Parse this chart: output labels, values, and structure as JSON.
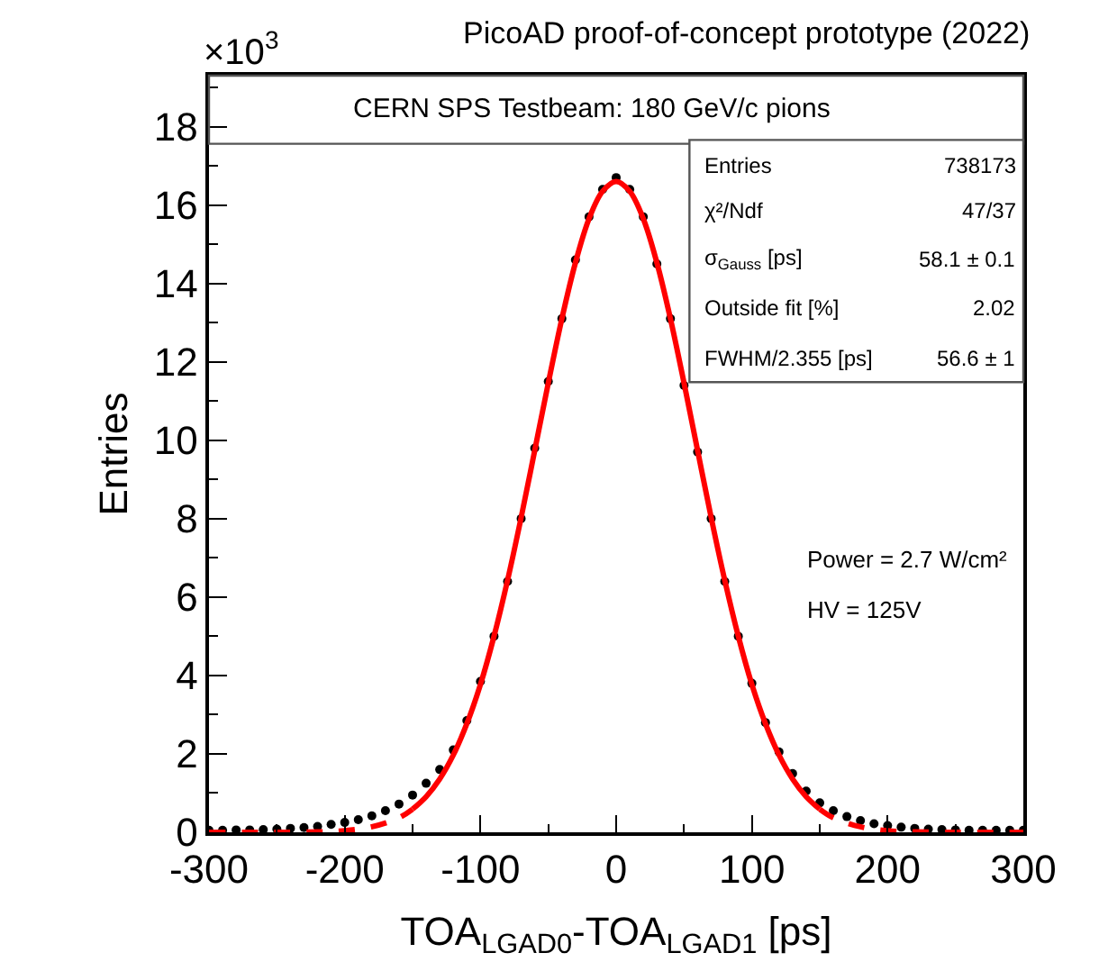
{
  "chart_data": {
    "type": "scatter",
    "title": "PicoAD proof-of-concept prototype (2022)",
    "xlabel": "TOA$_{LGAD0}$-TOA$_{LGAD1}$ [ps]",
    "ylabel": "Entries",
    "xlim": [
      -300,
      300
    ],
    "xticks": [
      -300,
      -200,
      -100,
      0,
      100,
      200,
      300
    ],
    "ylim": [
      0,
      19.3
    ],
    "yticks": [
      0,
      2,
      4,
      6,
      8,
      10,
      12,
      14,
      16,
      18
    ],
    "annotations": [
      "×10$^{3}$",
      "CERN SPS Testbeam: 180 GeV/c pions",
      "Entries",
      "738173",
      "χ²/Ndf",
      "47/37",
      "σ$_{Gauss}$ [ps]",
      "58.1 ± 0.1",
      "Outside fit [%]",
      "2.02",
      "FWHM/2.355 [ps]",
      "56.6 ± 1",
      "Power = 2.7 W/cm²",
      "HV = 125V"
    ],
    "series": [
      {
        "color": "#000000",
        "marker": "circle",
        "x": [
          -300,
          -290,
          -280,
          -270,
          -260,
          -250,
          -240,
          -230,
          -220,
          -210,
          -200,
          -190,
          -180,
          -170,
          -160,
          -150,
          -140,
          -130,
          -120,
          -110,
          -100,
          -90,
          -80,
          -70,
          -60,
          -50,
          -40,
          -30,
          -20,
          -10,
          0,
          10,
          20,
          30,
          40,
          50,
          60,
          70,
          80,
          90,
          100,
          110,
          120,
          130,
          140,
          150,
          160,
          170,
          180,
          190,
          200,
          210,
          220,
          230,
          240,
          250,
          260,
          270,
          280,
          290,
          300
        ],
        "values": [
          0.05,
          0.05,
          0.06,
          0.06,
          0.07,
          0.08,
          0.1,
          0.12,
          0.15,
          0.2,
          0.25,
          0.32,
          0.42,
          0.55,
          0.72,
          0.95,
          1.25,
          1.6,
          2.1,
          2.85,
          3.85,
          5.0,
          6.4,
          8.0,
          9.8,
          11.5,
          13.1,
          14.6,
          15.7,
          16.4,
          16.7,
          16.4,
          15.7,
          14.5,
          13.1,
          11.4,
          9.7,
          8.0,
          6.4,
          5.0,
          3.8,
          2.8,
          2.05,
          1.5,
          1.05,
          0.75,
          0.55,
          0.4,
          0.3,
          0.22,
          0.17,
          0.13,
          0.1,
          0.08,
          0.07,
          0.06,
          0.05,
          0.05,
          0.05,
          0.05,
          0.05
        ]
      },
      {
        "type": "line",
        "color": "#ff0000",
        "line_style": "solid",
        "x": [
          -150,
          -140,
          -130,
          -120,
          -110,
          -100,
          -90,
          -80,
          -70,
          -60,
          -50,
          -40,
          -30,
          -20,
          -10,
          0,
          10,
          20,
          30,
          40,
          50,
          60,
          70,
          80,
          90,
          100,
          110,
          120,
          130,
          140,
          150
        ],
        "values": [
          0.59,
          0.91,
          1.36,
          1.97,
          2.77,
          3.77,
          5.0,
          6.43,
          8.03,
          9.74,
          11.46,
          13.1,
          14.53,
          15.65,
          16.35,
          16.6,
          16.35,
          15.65,
          14.53,
          13.1,
          11.46,
          9.74,
          8.03,
          6.43,
          5.0,
          3.77,
          2.77,
          1.97,
          1.36,
          0.91,
          0.59
        ]
      },
      {
        "type": "line",
        "color": "#ff0000",
        "line_style": "dashed",
        "x": [
          -300,
          -250,
          -220,
          -200,
          -180,
          -160,
          -150
        ],
        "values": [
          0,
          0,
          0.01,
          0.04,
          0.14,
          0.37,
          0.59
        ]
      },
      {
        "type": "line",
        "color": "#ff0000",
        "line_style": "dashed",
        "x": [
          150,
          160,
          180,
          200,
          220,
          250,
          300
        ],
        "values": [
          0.59,
          0.37,
          0.14,
          0.04,
          0.01,
          0,
          0
        ]
      }
    ]
  }
}
